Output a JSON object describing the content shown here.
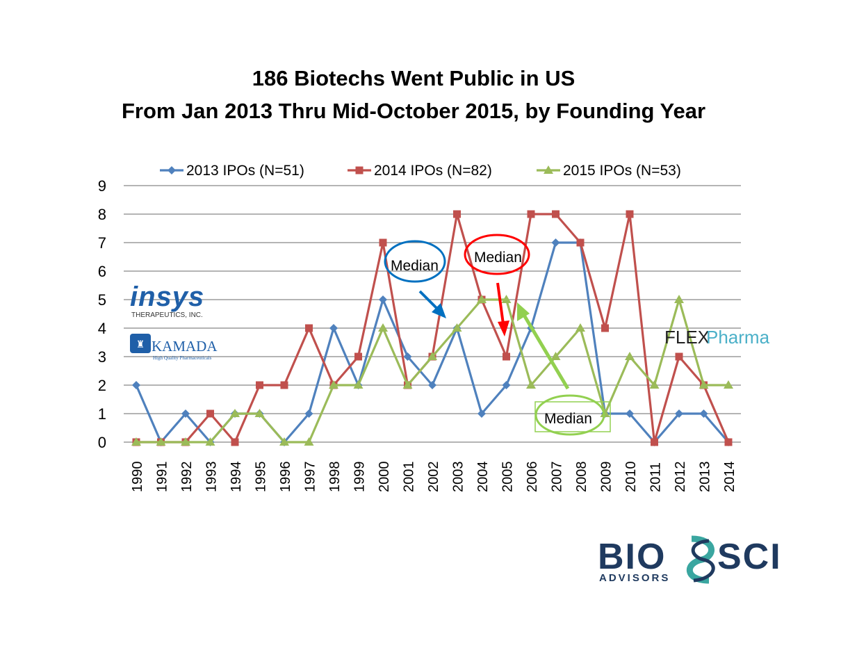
{
  "chart_data": {
    "type": "line",
    "title": "186 Biotechs Went Public in US",
    "subtitle": "From Jan 2013 Thru Mid-October 2015, by Founding Year",
    "xlabel": "",
    "ylabel": "",
    "ylim": [
      0,
      9
    ],
    "yticks": [
      "0",
      "1",
      "2",
      "3",
      "4",
      "5",
      "6",
      "7",
      "8",
      "9"
    ],
    "grid": true,
    "legend_position": "top",
    "categories": [
      "1990",
      "1991",
      "1992",
      "1993",
      "1994",
      "1995",
      "1996",
      "1997",
      "1998",
      "1999",
      "2000",
      "2001",
      "2002",
      "2003",
      "2004",
      "2005",
      "2006",
      "2007",
      "2008",
      "2009",
      "2010",
      "2011",
      "2012",
      "2013",
      "2014"
    ],
    "series": [
      {
        "name": "2013 IPOs (N=51)",
        "color": "#4f81bd",
        "marker": "diamond",
        "values": [
          2,
          0,
          1,
          0,
          1,
          1,
          0,
          1,
          4,
          2,
          5,
          3,
          2,
          4,
          1,
          2,
          4,
          7,
          7,
          1,
          1,
          0,
          1,
          1,
          0
        ]
      },
      {
        "name": "2014 IPOs (N=82)",
        "color": "#c0504d",
        "marker": "square",
        "values": [
          0,
          0,
          0,
          1,
          0,
          2,
          2,
          4,
          2,
          3,
          7,
          2,
          3,
          8,
          5,
          3,
          8,
          8,
          7,
          4,
          8,
          0,
          3,
          2,
          0
        ]
      },
      {
        "name": "2015 IPOs (N=53)",
        "color": "#9bbb59",
        "marker": "triangle",
        "values": [
          0,
          0,
          0,
          0,
          1,
          1,
          0,
          0,
          2,
          2,
          4,
          2,
          3,
          4,
          5,
          5,
          2,
          3,
          4,
          1,
          3,
          2,
          5,
          2,
          2
        ]
      }
    ],
    "annotations": [
      {
        "text": "Median",
        "series": "2013 IPOs (N=51)",
        "color": "#0070c0"
      },
      {
        "text": "Median",
        "series": "2014 IPOs (N=82)",
        "color": "#ff0000"
      },
      {
        "text": "Median",
        "series": "2015 IPOs (N=53)",
        "color": "#92d050"
      }
    ]
  },
  "logos": {
    "insys": {
      "name": "insys",
      "tagline": "THERAPEUTICS, INC."
    },
    "kamada": {
      "name": "KAMADA",
      "tagline": "High Quality Pharmaceuticals"
    },
    "flex": {
      "part1": "FLEX",
      "part2": "Pharma"
    },
    "biosci": {
      "part1": "BIO",
      "part2": "SCI",
      "tagline": "ADVISORS"
    }
  },
  "colors": {
    "grid": "#868686",
    "insys_blue": "#1f5fa8",
    "kamada_blue": "#1f5fa8",
    "flex_teal": "#4bb0c8",
    "biosci_navy": "#1f3a5f",
    "biosci_teal": "#3aa6a0"
  }
}
